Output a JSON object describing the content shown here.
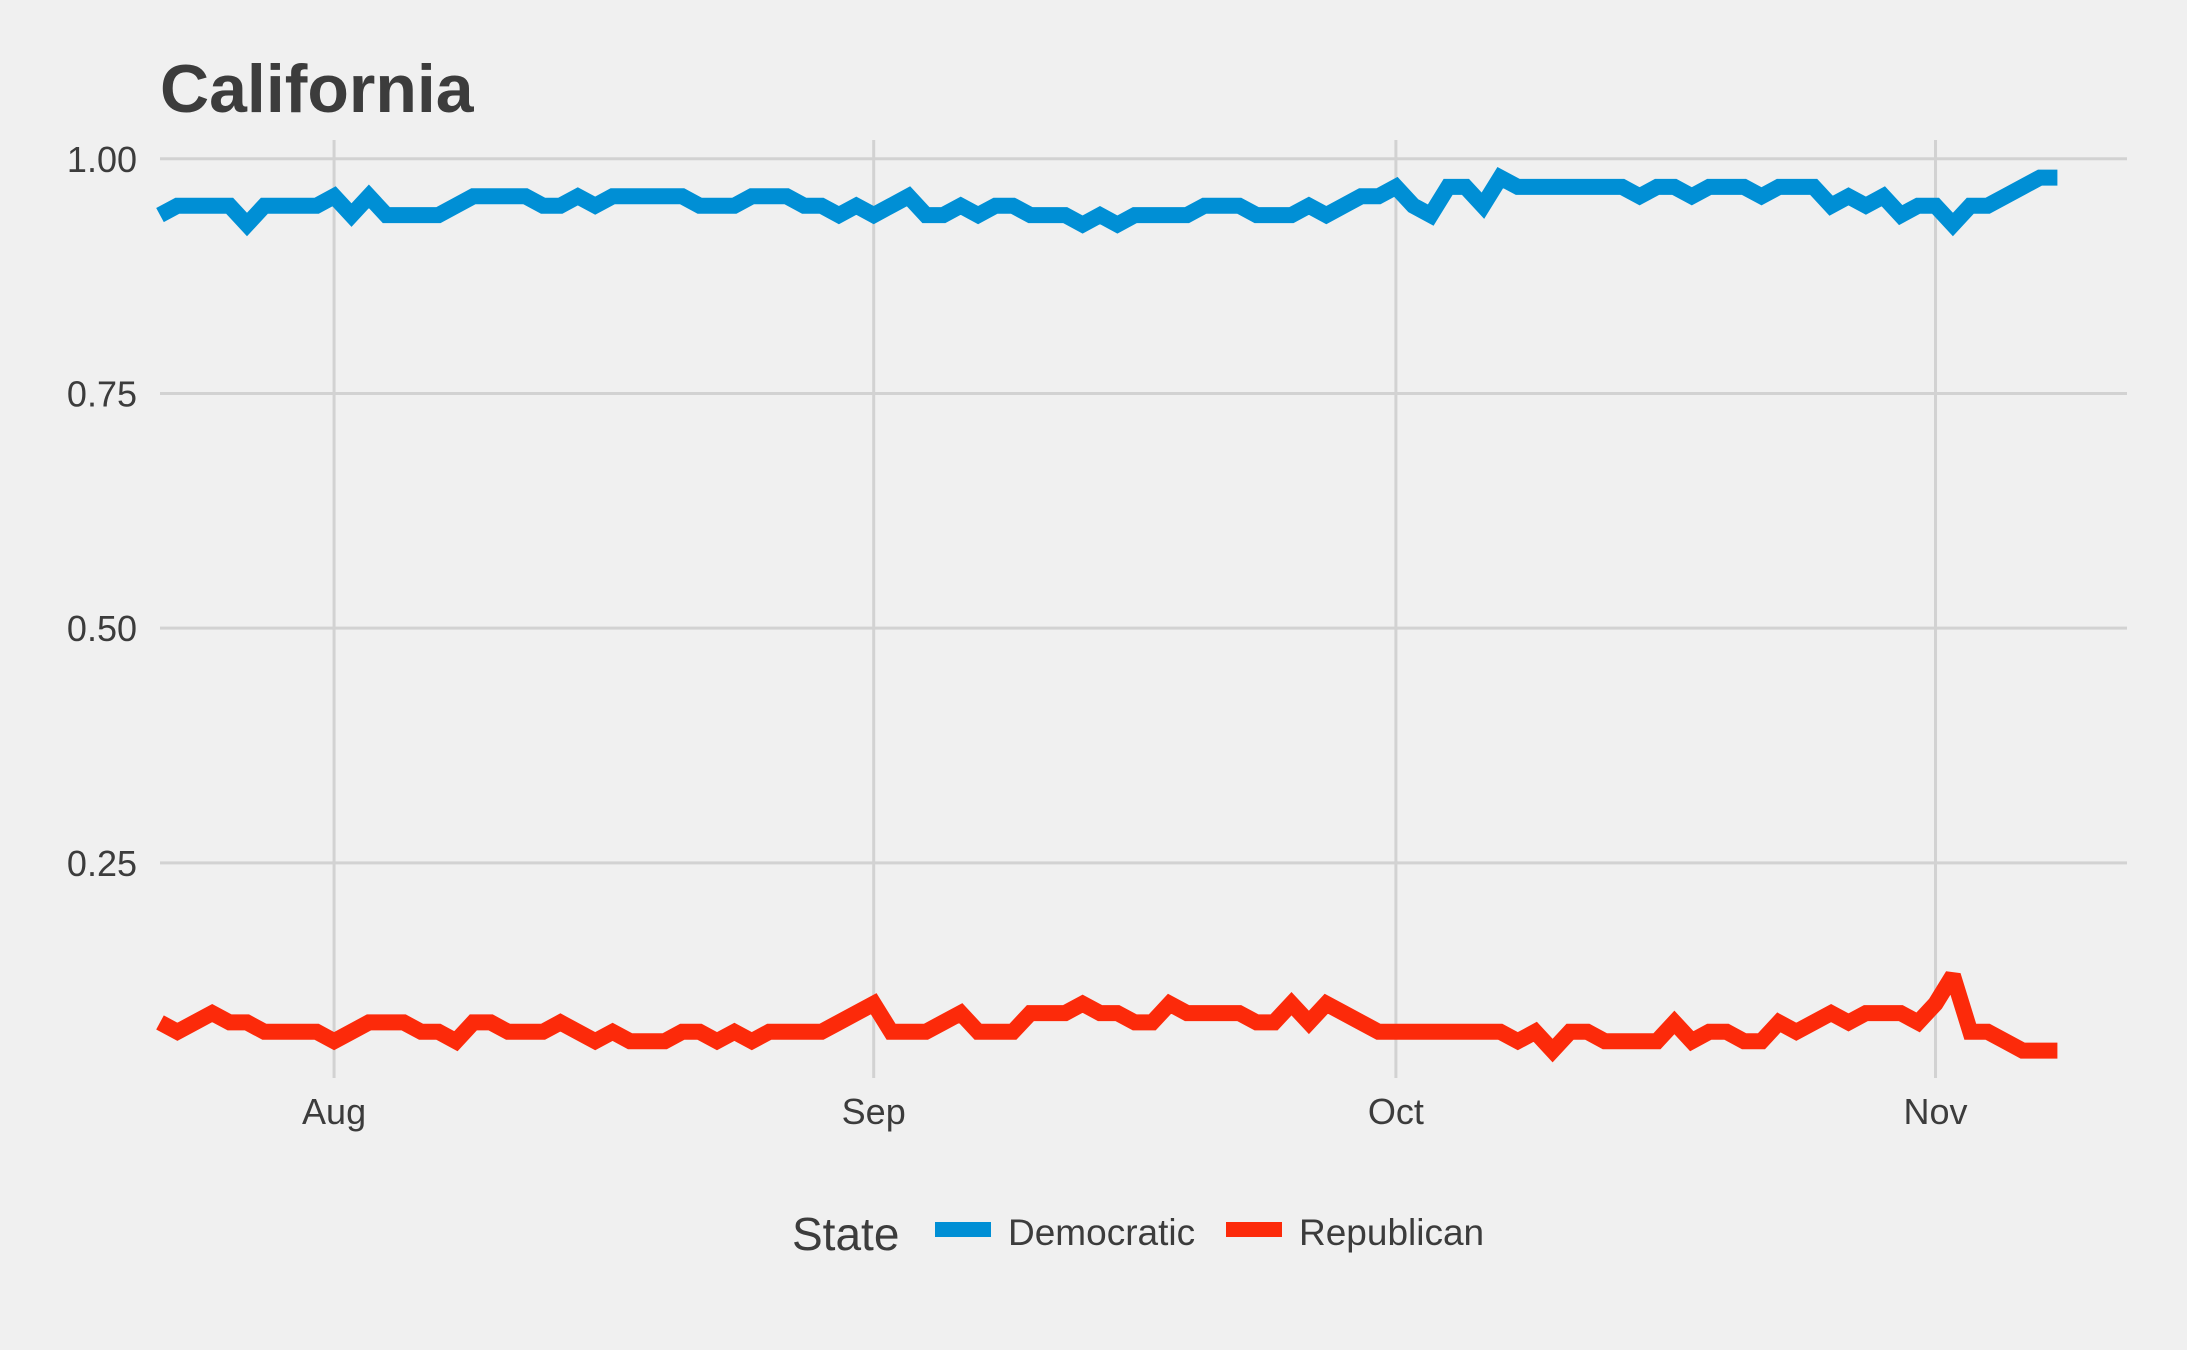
{
  "chart_data": {
    "type": "line",
    "title": "California",
    "xlabel": "",
    "ylabel": "",
    "x_ticks": [
      {
        "date": "2016-08-01",
        "label": "Aug"
      },
      {
        "date": "2016-09-01",
        "label": "Sep"
      },
      {
        "date": "2016-10-01",
        "label": "Oct"
      },
      {
        "date": "2016-11-01",
        "label": "Nov"
      }
    ],
    "y_ticks": [
      "0.25",
      "0.50",
      "0.75",
      "1.00"
    ],
    "xlim": [
      "2016-07-22",
      "2016-11-12"
    ],
    "ylim": [
      0.04,
      1.02
    ],
    "grid": true,
    "legend": {
      "title": "State",
      "position": "bottom"
    },
    "x_start": "2016-07-22",
    "series": [
      {
        "name": "Democratic",
        "color": "#008fd5",
        "values": [
          0.94,
          0.95,
          0.95,
          0.95,
          0.95,
          0.93,
          0.95,
          0.95,
          0.95,
          0.95,
          0.96,
          0.94,
          0.96,
          0.94,
          0.94,
          0.94,
          0.94,
          0.95,
          0.96,
          0.96,
          0.96,
          0.96,
          0.95,
          0.95,
          0.96,
          0.95,
          0.96,
          0.96,
          0.96,
          0.96,
          0.96,
          0.95,
          0.95,
          0.95,
          0.96,
          0.96,
          0.96,
          0.95,
          0.95,
          0.94,
          0.95,
          0.94,
          0.95,
          0.96,
          0.94,
          0.94,
          0.95,
          0.94,
          0.95,
          0.95,
          0.94,
          0.94,
          0.94,
          0.93,
          0.94,
          0.93,
          0.94,
          0.94,
          0.94,
          0.94,
          0.95,
          0.95,
          0.95,
          0.94,
          0.94,
          0.94,
          0.95,
          0.94,
          0.95,
          0.96,
          0.96,
          0.97,
          0.95,
          0.94,
          0.97,
          0.97,
          0.95,
          0.98,
          0.97,
          0.97,
          0.97,
          0.97,
          0.97,
          0.97,
          0.97,
          0.96,
          0.97,
          0.97,
          0.96,
          0.97,
          0.97,
          0.97,
          0.96,
          0.97,
          0.97,
          0.97,
          0.95,
          0.96,
          0.95,
          0.96,
          0.94,
          0.95,
          0.95,
          0.93,
          0.95,
          0.95,
          0.96,
          0.97,
          0.98,
          0.98
        ]
      },
      {
        "name": "Republican",
        "color": "#fc2a0a",
        "values": [
          0.08,
          0.07,
          0.08,
          0.09,
          0.08,
          0.08,
          0.07,
          0.07,
          0.07,
          0.07,
          0.06,
          0.07,
          0.08,
          0.08,
          0.08,
          0.07,
          0.07,
          0.06,
          0.08,
          0.08,
          0.07,
          0.07,
          0.07,
          0.08,
          0.07,
          0.06,
          0.07,
          0.06,
          0.06,
          0.06,
          0.07,
          0.07,
          0.06,
          0.07,
          0.06,
          0.07,
          0.07,
          0.07,
          0.07,
          0.08,
          0.09,
          0.1,
          0.07,
          0.07,
          0.07,
          0.08,
          0.09,
          0.07,
          0.07,
          0.07,
          0.09,
          0.09,
          0.09,
          0.1,
          0.09,
          0.09,
          0.08,
          0.08,
          0.1,
          0.09,
          0.09,
          0.09,
          0.09,
          0.08,
          0.08,
          0.1,
          0.08,
          0.1,
          0.09,
          0.08,
          0.07,
          0.07,
          0.07,
          0.07,
          0.07,
          0.07,
          0.07,
          0.07,
          0.06,
          0.07,
          0.05,
          0.07,
          0.07,
          0.06,
          0.06,
          0.06,
          0.06,
          0.08,
          0.06,
          0.07,
          0.07,
          0.06,
          0.06,
          0.08,
          0.07,
          0.08,
          0.09,
          0.08,
          0.09,
          0.09,
          0.09,
          0.08,
          0.1,
          0.13,
          0.07,
          0.07,
          0.06,
          0.05,
          0.05,
          0.05
        ]
      }
    ]
  }
}
